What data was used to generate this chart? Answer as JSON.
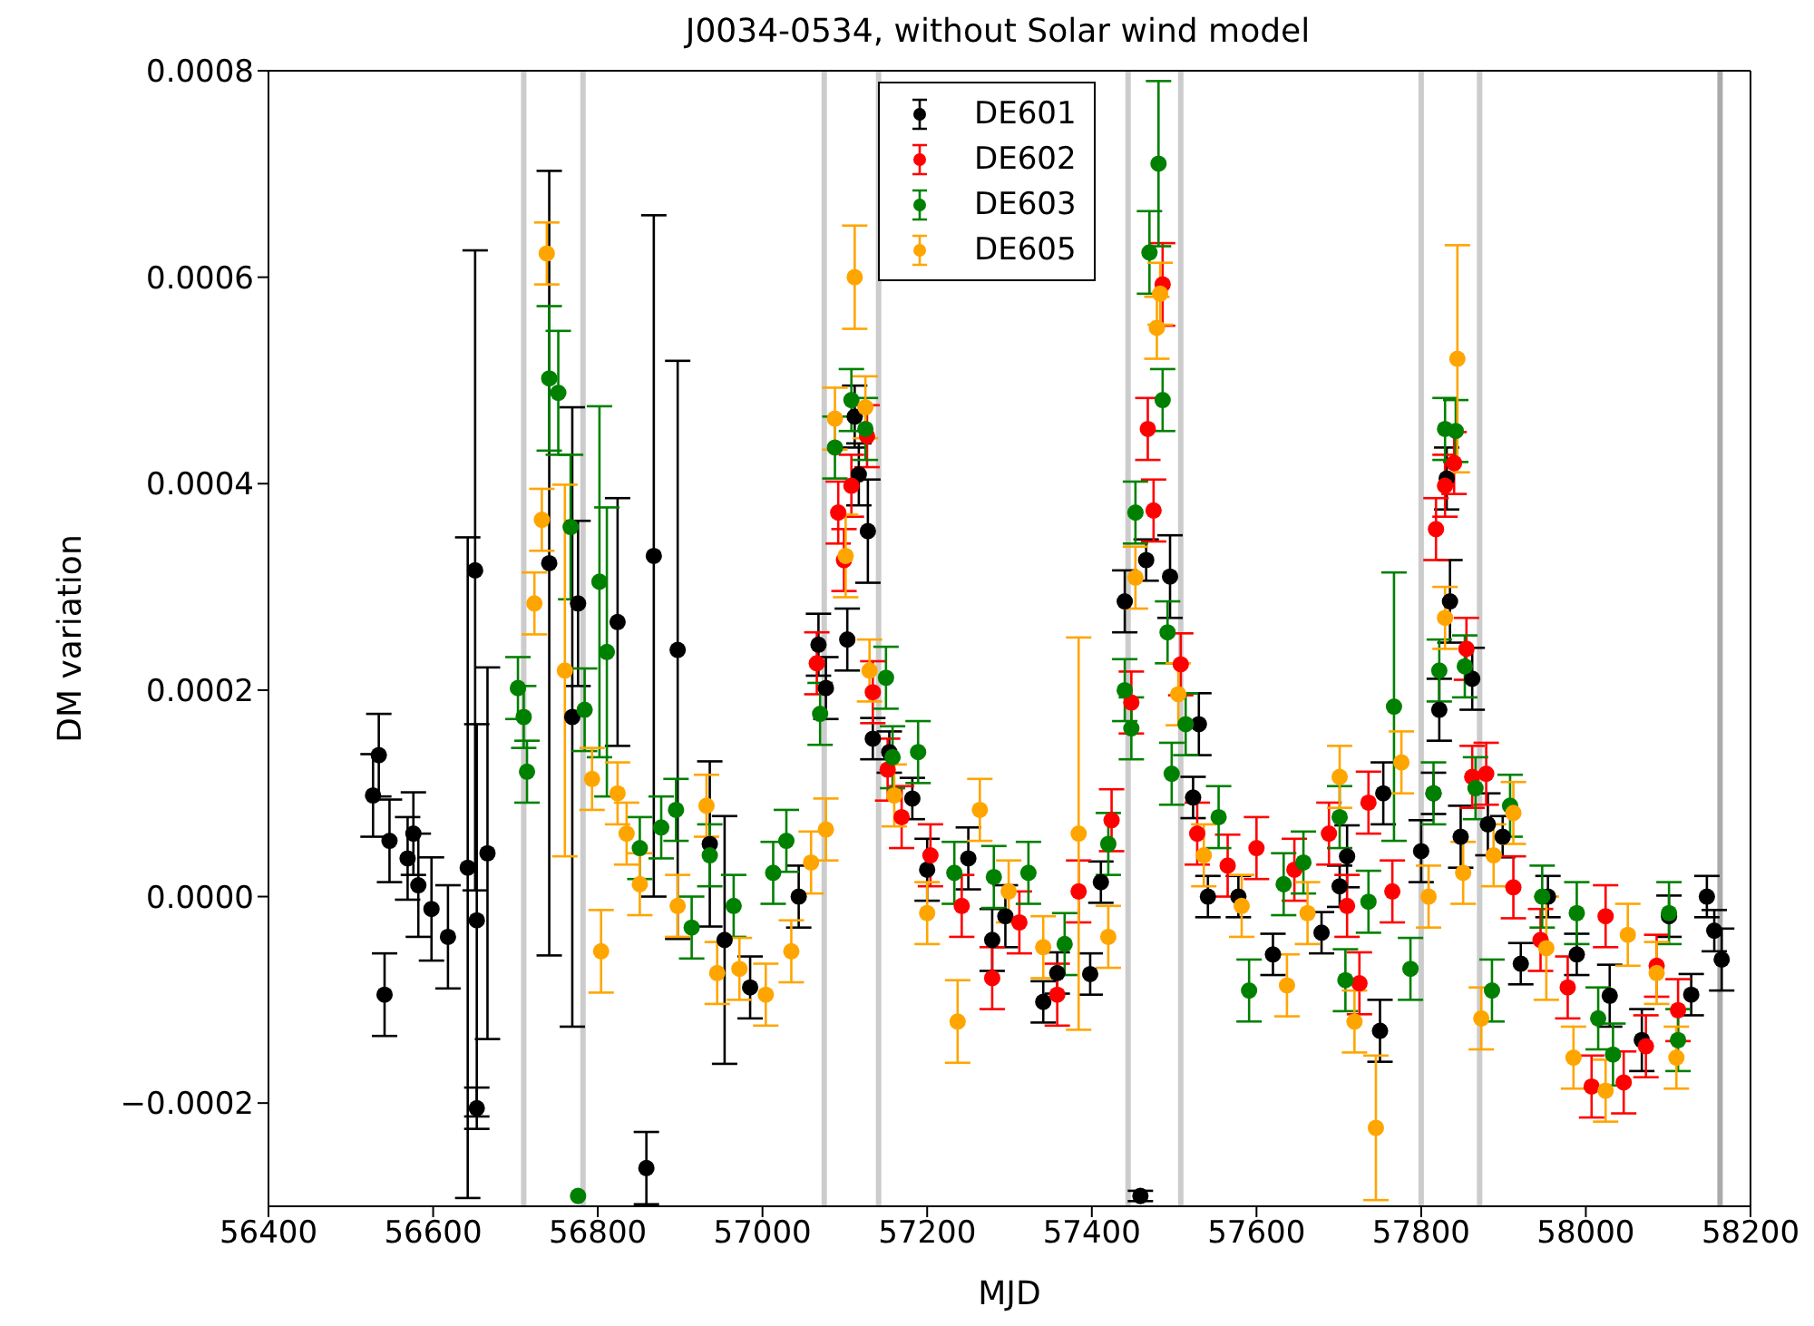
{
  "chart_data": {
    "type": "scatter",
    "title": "J0034-0534, without Solar wind model",
    "xlabel": "MJD",
    "ylabel": "DM variation",
    "xlim": [
      56400,
      58200
    ],
    "xticks": [
      56400,
      56600,
      56800,
      57000,
      57200,
      57400,
      57600,
      57800,
      58000,
      58200
    ],
    "ylim": [
      -0.0003,
      0.0008
    ],
    "yticks": [
      {
        "value": -0.0002,
        "label": "−0.0002"
      },
      {
        "value": 0,
        "label": "0.0000"
      },
      {
        "value": 0.0002,
        "label": "0.0002"
      },
      {
        "value": 0.0004,
        "label": "0.0004"
      },
      {
        "value": 0.0006,
        "label": "0.0006"
      },
      {
        "value": 0.0008,
        "label": "0.0008"
      }
    ],
    "marker": "circle",
    "legend": "top center",
    "ref_lines": [
      {
        "axis": "x",
        "value": 56710,
        "color": "#cccccc"
      },
      {
        "axis": "x",
        "value": 56782,
        "color": "#cccccc"
      },
      {
        "axis": "x",
        "value": 57075,
        "color": "#cccccc"
      },
      {
        "axis": "x",
        "value": 57141,
        "color": "#cccccc"
      },
      {
        "axis": "x",
        "value": 57444,
        "color": "#cccccc"
      },
      {
        "axis": "x",
        "value": 57508,
        "color": "#cccccc"
      },
      {
        "axis": "x",
        "value": 57800,
        "color": "#cccccc"
      },
      {
        "axis": "x",
        "value": 57871,
        "color": "#cccccc"
      },
      {
        "axis": "x",
        "value": 58163,
        "color": "#aaaaaa"
      }
    ],
    "series": [
      {
        "name": "DE601",
        "color": "#000000",
        "x": [
          56527,
          56534,
          56541,
          56547,
          56569,
          56576,
          56582,
          56598,
          56618,
          56642,
          56651,
          56653,
          56653,
          56666,
          56741,
          56769,
          56776,
          56824,
          56859,
          56868,
          56897,
          56936,
          56954,
          56985,
          57044,
          57068,
          57077,
          57103,
          57112,
          57117,
          57128,
          57134,
          57154,
          57182,
          57200,
          57250,
          57279,
          57295,
          57341,
          57358,
          57398,
          57411,
          57440,
          57459,
          57466,
          57495,
          57523,
          57530,
          57541,
          57578,
          57620,
          57679,
          57701,
          57710,
          57750,
          57754,
          57800,
          57815,
          57822,
          57831,
          57835,
          57848,
          57862,
          57881,
          57899,
          57921,
          57954,
          57989,
          58029,
          58068,
          58101,
          58128,
          58147,
          58156,
          58165
        ],
        "values": [
          9.8e-05,
          0.000137,
          -9.5e-05,
          5.4e-05,
          3.7e-05,
          6.1e-05,
          1.1e-05,
          -1.2e-05,
          -3.9e-05,
          2.8e-05,
          0.000316,
          -2.3e-05,
          -0.000205,
          4.2e-05,
          0.000323,
          0.000174,
          0.000284,
          0.000266,
          -0.000263,
          0.00033,
          0.000239,
          5.1e-05,
          -4.2e-05,
          -8.8e-05,
          0.0,
          0.000244,
          0.000202,
          0.000249,
          0.000465,
          0.000409,
          0.000354,
          0.000153,
          0.00014,
          9.5e-05,
          2.6e-05,
          3.7e-05,
          -4.2e-05,
          -1.9e-05,
          -0.000102,
          -7.4e-05,
          -7.5e-05,
          1.4e-05,
          0.000286,
          -0.00029,
          0.000326,
          0.00031,
          9.6e-05,
          0.000167,
          0.0,
          0.0,
          -5.6e-05,
          -3.5e-05,
          1e-05,
          3.9e-05,
          -0.00013,
          0.0001,
          4.4e-05,
          0.0001,
          0.000181,
          0.000405,
          0.000286,
          5.8e-05,
          0.000211,
          7e-05,
          5.8e-05,
          -6.5e-05,
          0.0,
          -5.6e-05,
          -9.6e-05,
          -0.000139,
          -1.9e-05,
          -9.5e-05,
          0.0,
          -3.3e-05,
          -6.1e-05
        ],
        "errors": [
          4e-05,
          4e-05,
          4e-05,
          4e-05,
          4e-05,
          4e-05,
          5e-05,
          5e-05,
          5e-05,
          0.00032,
          0.00031,
          0.00019,
          2e-05,
          0.00018,
          0.00038,
          0.0003,
          8e-05,
          0.00012,
          3.5e-05,
          0.00033,
          0.00028,
          8e-05,
          0.00012,
          3e-05,
          3e-05,
          3e-05,
          3e-05,
          3e-05,
          3e-05,
          3e-05,
          5e-05,
          2e-05,
          2e-05,
          2e-05,
          3e-05,
          3e-05,
          3e-05,
          3e-05,
          2e-05,
          2e-05,
          2e-05,
          2e-05,
          3e-05,
          5e-06,
          2e-05,
          4e-05,
          2e-05,
          3e-05,
          2e-05,
          2e-05,
          2e-05,
          2e-05,
          2e-05,
          3e-05,
          3e-05,
          3e-05,
          3e-05,
          2e-05,
          3e-05,
          3e-05,
          4e-05,
          3e-05,
          3e-05,
          3e-05,
          2e-05,
          2e-05,
          2e-05,
          2e-05,
          3e-05,
          3e-05,
          2e-05,
          2e-05,
          2e-05,
          2e-05,
          3e-05
        ]
      },
      {
        "name": "DE602",
        "color": "#ff0000",
        "x": [
          57066,
          57092,
          57099,
          57108,
          57127,
          57134,
          57152,
          57169,
          57204,
          57242,
          57279,
          57312,
          57358,
          57384,
          57424,
          57448,
          57468,
          57475,
          57486,
          57508,
          57528,
          57565,
          57600,
          57646,
          57688,
          57710,
          57725,
          57736,
          57765,
          57818,
          57829,
          57840,
          57855,
          57862,
          57879,
          57912,
          57945,
          57978,
          58007,
          58024,
          58046,
          58073,
          58086,
          58112
        ],
        "values": [
          0.000226,
          0.000372,
          0.000326,
          0.000398,
          0.000446,
          0.000198,
          0.000123,
          7.7e-05,
          4e-05,
          -9e-06,
          -7.9e-05,
          -2.5e-05,
          -9.5e-05,
          5e-06,
          7.4e-05,
          0.000188,
          0.000453,
          0.000374,
          0.000593,
          0.000225,
          6.1e-05,
          3e-05,
          4.7e-05,
          2.6e-05,
          6.1e-05,
          -9e-06,
          -8.4e-05,
          9.1e-05,
          5e-06,
          0.000356,
          0.000398,
          0.00042,
          0.00024,
          0.000116,
          0.000119,
          9e-06,
          -4.2e-05,
          -8.8e-05,
          -0.000184,
          -1.9e-05,
          -0.00018,
          -0.000145,
          -6.7e-05,
          -0.00011
        ],
        "errors": [
          3e-05,
          3e-05,
          3e-05,
          3e-05,
          3e-05,
          3e-05,
          3e-05,
          3e-05,
          3e-05,
          3e-05,
          3e-05,
          3e-05,
          3e-05,
          3e-05,
          3e-05,
          3e-05,
          3e-05,
          3e-05,
          4e-05,
          3e-05,
          3e-05,
          3e-05,
          3e-05,
          3e-05,
          3e-05,
          3e-05,
          3e-05,
          3e-05,
          3e-05,
          3e-05,
          3e-05,
          3e-05,
          3e-05,
          3e-05,
          3e-05,
          3e-05,
          3e-05,
          3e-05,
          3e-05,
          3e-05,
          3e-05,
          3e-05,
          3e-05,
          3e-05
        ]
      },
      {
        "name": "DE603",
        "color": "#008000",
        "x": [
          56703,
          56710,
          56714,
          56741,
          56752,
          56767,
          56776,
          56784,
          56802,
          56811,
          56851,
          56877,
          56895,
          56914,
          56936,
          56965,
          57013,
          57029,
          57070,
          57088,
          57108,
          57125,
          57150,
          57158,
          57189,
          57233,
          57281,
          57323,
          57367,
          57420,
          57440,
          57448,
          57453,
          57470,
          57481,
          57486,
          57492,
          57497,
          57514,
          57554,
          57591,
          57633,
          57657,
          57701,
          57708,
          57736,
          57767,
          57787,
          57815,
          57822,
          57829,
          57842,
          57853,
          57866,
          57886,
          57908,
          57947,
          57989,
          58015,
          58033,
          58101,
          58112
        ],
        "values": [
          0.000202,
          0.000174,
          0.000121,
          0.000502,
          0.000488,
          0.000358,
          -0.00029,
          0.000181,
          0.000305,
          0.000237,
          4.7e-05,
          6.7e-05,
          8.4e-05,
          -3e-05,
          4e-05,
          -9e-06,
          2.3e-05,
          5.4e-05,
          0.000177,
          0.000435,
          0.000481,
          0.000453,
          0.000212,
          0.000135,
          0.00014,
          2.3e-05,
          1.9e-05,
          2.3e-05,
          -4.6e-05,
          5.1e-05,
          0.0002,
          0.000163,
          0.000372,
          0.000624,
          0.00071,
          0.000481,
          0.000256,
          0.000119,
          0.000167,
          7.7e-05,
          -9.1e-05,
          1.2e-05,
          3.3e-05,
          7.7e-05,
          -8.1e-05,
          -5e-06,
          0.000184,
          -7e-05,
          0.0001,
          0.000219,
          0.000453,
          0.000451,
          0.000223,
          0.000105,
          -9.1e-05,
          8.8e-05,
          0.0,
          -1.6e-05,
          -0.000118,
          -0.000153,
          -1.6e-05,
          -0.000139
        ],
        "errors": [
          3e-05,
          3e-05,
          3e-05,
          7e-05,
          6e-05,
          7e-05,
          null,
          4e-05,
          0.00017,
          0.00014,
          3e-05,
          3e-05,
          3e-05,
          3e-05,
          3e-05,
          3e-05,
          3e-05,
          3e-05,
          3e-05,
          3e-05,
          3e-05,
          3e-05,
          3e-05,
          3e-05,
          3e-05,
          3e-05,
          3e-05,
          3e-05,
          3e-05,
          3e-05,
          3e-05,
          3e-05,
          3e-05,
          4e-05,
          8e-05,
          3e-05,
          3e-05,
          3e-05,
          3e-05,
          3e-05,
          3e-05,
          3e-05,
          3e-05,
          3e-05,
          3e-05,
          3e-05,
          0.00013,
          3e-05,
          3e-05,
          3e-05,
          3e-05,
          3e-05,
          3e-05,
          3e-05,
          3e-05,
          3e-05,
          3e-05,
          3e-05,
          3e-05,
          3e-05,
          3e-05,
          3e-05
        ]
      },
      {
        "name": "DE605",
        "color": "#ffa500",
        "x": [
          56723,
          56732,
          56738,
          56760,
          56793,
          56804,
          56824,
          56835,
          56851,
          56897,
          56932,
          56945,
          56972,
          57004,
          57035,
          57059,
          57077,
          57088,
          57101,
          57112,
          57125,
          57130,
          57160,
          57200,
          57237,
          57264,
          57299,
          57341,
          57384,
          57420,
          57453,
          57479,
          57483,
          57505,
          57536,
          57582,
          57637,
          57662,
          57701,
          57719,
          57745,
          57776,
          57809,
          57829,
          57844,
          57851,
          57873,
          57888,
          57912,
          57952,
          57985,
          58024,
          58051,
          58086,
          58110
        ],
        "values": [
          0.000284,
          0.000365,
          0.000623,
          0.000219,
          0.000114,
          -5.3e-05,
          0.0001,
          6.1e-05,
          1.2e-05,
          -9e-06,
          8.8e-05,
          -7.4e-05,
          -7e-05,
          -9.5e-05,
          -5.3e-05,
          3.3e-05,
          6.5e-05,
          0.000463,
          0.00033,
          0.0006,
          0.000474,
          0.000219,
          9.8e-05,
          -1.6e-05,
          -0.000121,
          8.4e-05,
          5e-06,
          -4.9e-05,
          6.1e-05,
          -3.9e-05,
          0.000309,
          0.000551,
          0.000584,
          0.000196,
          4e-05,
          -9e-06,
          -8.6e-05,
          -1.6e-05,
          0.000116,
          -0.000121,
          -0.000224,
          0.00013,
          0.0,
          0.00027,
          0.000521,
          2.3e-05,
          -0.000118,
          4e-05,
          8.1e-05,
          -5e-05,
          -0.000156,
          -0.000188,
          -3.7e-05,
          -7.4e-05,
          -0.000156
        ],
        "errors": [
          3e-05,
          3e-05,
          3e-05,
          0.00018,
          3e-05,
          4e-05,
          3e-05,
          3e-05,
          3e-05,
          3e-05,
          3e-05,
          3e-05,
          3e-05,
          3e-05,
          3e-05,
          3e-05,
          3e-05,
          3e-05,
          4e-05,
          5e-05,
          3e-05,
          3e-05,
          3e-05,
          3e-05,
          4e-05,
          3e-05,
          3e-05,
          3e-05,
          0.00019,
          3e-05,
          3e-05,
          3e-05,
          3e-05,
          3e-05,
          3e-05,
          3e-05,
          3e-05,
          3e-05,
          3e-05,
          3e-05,
          7e-05,
          3e-05,
          3e-05,
          3e-05,
          0.00011,
          3e-05,
          3e-05,
          3e-05,
          3e-05,
          5e-05,
          3e-05,
          3e-05,
          3e-05,
          3e-05,
          3e-05
        ]
      }
    ]
  }
}
